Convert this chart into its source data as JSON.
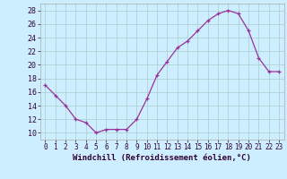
{
  "x": [
    0,
    1,
    2,
    3,
    4,
    5,
    6,
    7,
    8,
    9,
    10,
    11,
    12,
    13,
    14,
    15,
    16,
    17,
    18,
    19,
    20,
    21,
    22,
    23
  ],
  "y": [
    17.0,
    15.5,
    14.0,
    12.0,
    11.5,
    10.0,
    10.5,
    10.5,
    10.5,
    12.0,
    15.0,
    18.5,
    20.5,
    22.5,
    23.5,
    25.0,
    26.5,
    27.5,
    28.0,
    27.5,
    25.0,
    21.0,
    19.0,
    19.0
  ],
  "xlim": [
    -0.5,
    23.5
  ],
  "ylim": [
    9,
    29
  ],
  "yticks": [
    10,
    12,
    14,
    16,
    18,
    20,
    22,
    24,
    26,
    28
  ],
  "xticks": [
    0,
    1,
    2,
    3,
    4,
    5,
    6,
    7,
    8,
    9,
    10,
    11,
    12,
    13,
    14,
    15,
    16,
    17,
    18,
    19,
    20,
    21,
    22,
    23
  ],
  "line_color": "#993399",
  "marker_color": "#993399",
  "bg_color": "#cceeff",
  "grid_color": "#aacccc",
  "xlabel": "Windchill (Refroidissement éolien,°C)",
  "xlabel_fontsize": 6.5,
  "tick_fontsize": 5.5
}
